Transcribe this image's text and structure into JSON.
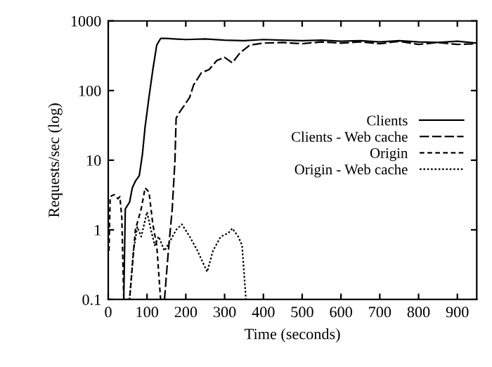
{
  "chart_data": {
    "type": "line",
    "xlabel": "Time (seconds)",
    "ylabel": "Requests/sec (log)",
    "log": "y",
    "xlim": [
      0,
      950
    ],
    "xticks": [
      0,
      100,
      200,
      300,
      400,
      500,
      600,
      700,
      800,
      900
    ],
    "ylim": [
      0.1,
      1000
    ],
    "yticks": [
      {
        "value": 0.1,
        "label": "0.1"
      },
      1,
      10,
      100,
      1000
    ],
    "legend": "center right",
    "grid": false,
    "series": [
      {
        "name": "Clients",
        "color": "#000000",
        "line_style": "solid",
        "x": [
          40,
          44,
          55,
          62,
          70,
          80,
          88,
          95,
          105,
          115,
          125,
          135,
          150,
          200,
          250,
          300,
          350,
          400,
          450,
          500,
          550,
          600,
          650,
          700,
          750,
          800,
          850,
          900,
          950
        ],
        "values": [
          0.1,
          2,
          2.5,
          4,
          5,
          6,
          12,
          30,
          80,
          200,
          450,
          560,
          560,
          540,
          550,
          530,
          520,
          540,
          530,
          520,
          530,
          510,
          520,
          500,
          520,
          500,
          490,
          510,
          480
        ]
      },
      {
        "name": "Clients - Web cache",
        "color": "#000000",
        "line_style": "dashed",
        "x": [
          145,
          155,
          165,
          172,
          175,
          185,
          195,
          210,
          220,
          240,
          260,
          280,
          300,
          320,
          340,
          365,
          400,
          450,
          500,
          550,
          600,
          650,
          700,
          750,
          800,
          850,
          900,
          950
        ],
        "values": [
          0.1,
          0.5,
          2,
          10,
          40,
          50,
          60,
          80,
          120,
          180,
          200,
          270,
          300,
          250,
          350,
          450,
          480,
          490,
          470,
          500,
          480,
          500,
          470,
          510,
          460,
          490,
          460,
          470
        ]
      },
      {
        "name": "Origin",
        "color": "#000000",
        "line_style": "short dashed",
        "x": [
          2,
          5,
          15,
          25,
          30,
          35,
          40,
          55,
          70,
          85,
          95,
          105,
          115,
          125,
          135
        ],
        "values": [
          0.5,
          3,
          3.2,
          2.8,
          3,
          1.5,
          0.1,
          0.1,
          1,
          2,
          4,
          3.5,
          1.2,
          0.6,
          0.1
        ]
      },
      {
        "name": "Origin - Web cache",
        "color": "#000000",
        "line_style": "dotted",
        "x": [
          55,
          65,
          75,
          85,
          100,
          110,
          120,
          130,
          145,
          160,
          175,
          190,
          210,
          230,
          255,
          270,
          290,
          310,
          320,
          335,
          345,
          355
        ],
        "values": [
          0.1,
          0.5,
          1.1,
          0.8,
          1.8,
          1,
          0.6,
          0.8,
          0.5,
          0.7,
          1.0,
          1.2,
          0.8,
          0.5,
          0.25,
          0.5,
          0.8,
          0.9,
          1.05,
          0.8,
          0.6,
          0.1
        ]
      }
    ]
  }
}
